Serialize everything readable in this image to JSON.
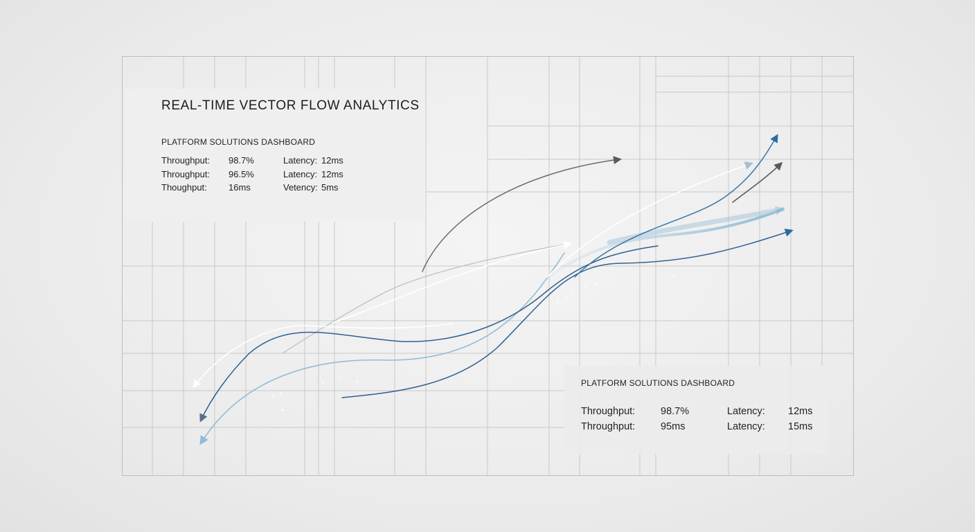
{
  "dashboard": {
    "title": "REAL-TIME VECTOR FLOW ANALYTICS",
    "primary_panel": {
      "subtitle": "PLATFORM SOLUTIONS DASHBOARD",
      "rows": [
        {
          "label": "Throughput:",
          "value": "98.7%",
          "label2": "Latency:",
          "value2": "12ms"
        },
        {
          "label": "Throughput:",
          "value": "96.5%",
          "label2": "Latency:",
          "value2": "12ms"
        },
        {
          "label": "Thoughput:",
          "value": "16ms",
          "label2": "Vetency:",
          "value2": "5ms"
        }
      ]
    },
    "secondary_panel": {
      "subtitle": "PLATFORM SOLUTIONS DASHBOARD",
      "rows": [
        {
          "label": "Throughput:",
          "value": "98.7%",
          "label2": "Latency:",
          "value2": "12ms"
        },
        {
          "label": "Throughput:",
          "value": "95ms",
          "label2": "Latency:",
          "value2": "15ms"
        }
      ]
    }
  },
  "colors": {
    "background": "#eeeeee",
    "grid": "#c9c9c9",
    "flow_dark_blue": "#2e5f8f",
    "flow_light_blue": "#8fbcd6",
    "flow_gray": "#6a6a6a",
    "flow_white": "#ffffff",
    "text": "#1f1f1f"
  }
}
